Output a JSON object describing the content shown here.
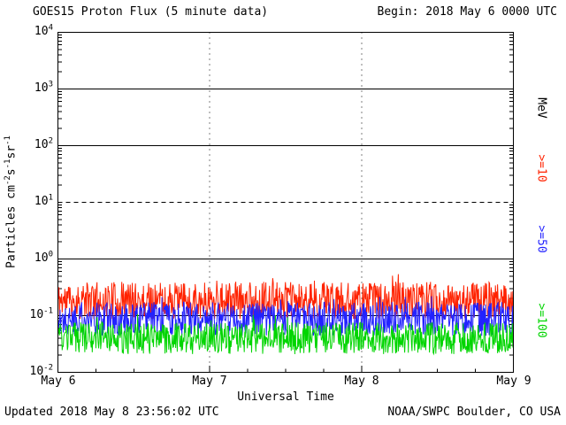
{
  "header": {
    "begin": "Begin: 2018 May 6 0000 UTC"
  },
  "footer": {
    "updated": "Updated 2018 May  8 23:56:02 UTC",
    "source": "NOAA/SWPC Boulder, CO USA"
  },
  "chart_data": {
    "type": "line",
    "title": "GOES15 Proton Flux (5 minute data)",
    "xlabel": "Universal Time",
    "ylabel": "Particles cm^{-2}s^{-1}sr^{-1}",
    "right_unit_label": "MeV",
    "x_tick_labels": [
      "May 6",
      "May 7",
      "May 8",
      "May 9"
    ],
    "y_tick_labels": [
      "10^{4}",
      "10^{3}",
      "10^{2}",
      "10^{1}",
      "10^{0}",
      "10^{-1}",
      "10^{-2}"
    ],
    "y_log_range": [
      -2,
      4
    ],
    "x_days": 3,
    "points_per_day": 288,
    "grid": {
      "solid_hlines_log": [
        3,
        2,
        0,
        -1
      ],
      "dashed_hlines_log": [
        1
      ],
      "day_boundary_vlines": [
        1,
        2
      ]
    },
    "legend_position": "right",
    "series": [
      {
        "label": ">=10",
        "threshold_mev": 10,
        "color": "#ff2200",
        "approx_mean_flux": 0.19,
        "approx_range_flux": [
          0.09,
          0.42
        ],
        "log_mean": -0.73,
        "log_noise_amp": 0.33,
        "seed": 11
      },
      {
        "label": ">=50",
        "threshold_mev": 50,
        "color": "#2222ff",
        "approx_mean_flux": 0.09,
        "approx_range_flux": [
          0.04,
          0.18
        ],
        "log_mean": -1.06,
        "log_noise_amp": 0.3,
        "seed": 22
      },
      {
        "label": ">=100",
        "threshold_mev": 100,
        "color": "#00d500",
        "approx_mean_flux": 0.04,
        "approx_range_flux": [
          0.02,
          0.08
        ],
        "log_mean": -1.4,
        "log_noise_amp": 0.28,
        "seed": 33
      }
    ]
  }
}
